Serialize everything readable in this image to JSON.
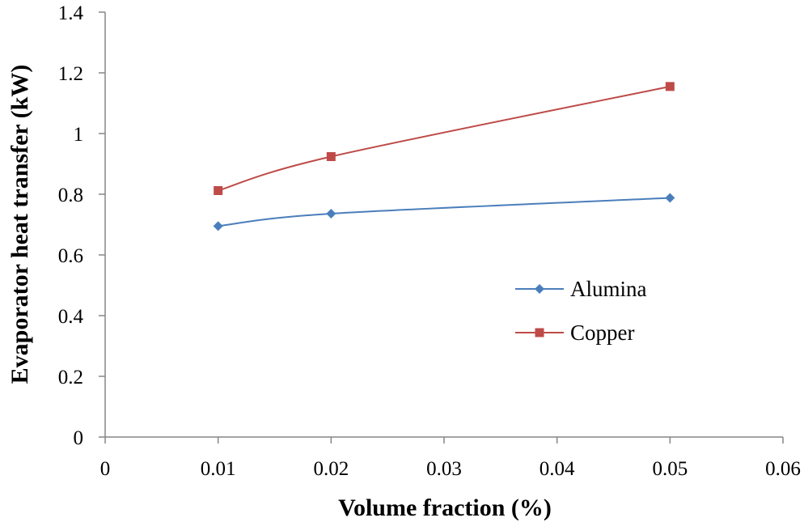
{
  "chart_data": {
    "type": "line",
    "title": "",
    "xlabel": "Volume fraction (%)",
    "ylabel": "Evaporator heat transfer (kW)",
    "xlim": [
      0,
      0.06
    ],
    "ylim": [
      0,
      1.4
    ],
    "x_ticks": [
      0,
      0.01,
      0.02,
      0.03,
      0.04,
      0.05,
      0.06
    ],
    "x_tick_labels": [
      "0",
      "0.01",
      "0.02",
      "0.03",
      "0.04",
      "0.05",
      "0.06"
    ],
    "y_ticks": [
      0,
      0.2,
      0.4,
      0.6,
      0.8,
      1.0,
      1.2,
      1.4
    ],
    "y_tick_labels": [
      "0",
      "0.2",
      "0.4",
      "0.6",
      "0.8",
      "1",
      "1.2",
      "1.4"
    ],
    "grid": false,
    "legend_position": "right",
    "series": [
      {
        "name": "Alumina",
        "x": [
          0.01,
          0.02,
          0.05
        ],
        "values": [
          0.695,
          0.736,
          0.788
        ],
        "color": "#4a7ebb",
        "marker": "diamond"
      },
      {
        "name": "Copper",
        "x": [
          0.01,
          0.02,
          0.05
        ],
        "values": [
          0.812,
          0.924,
          1.155
        ],
        "color": "#be4b48",
        "marker": "square"
      }
    ]
  }
}
